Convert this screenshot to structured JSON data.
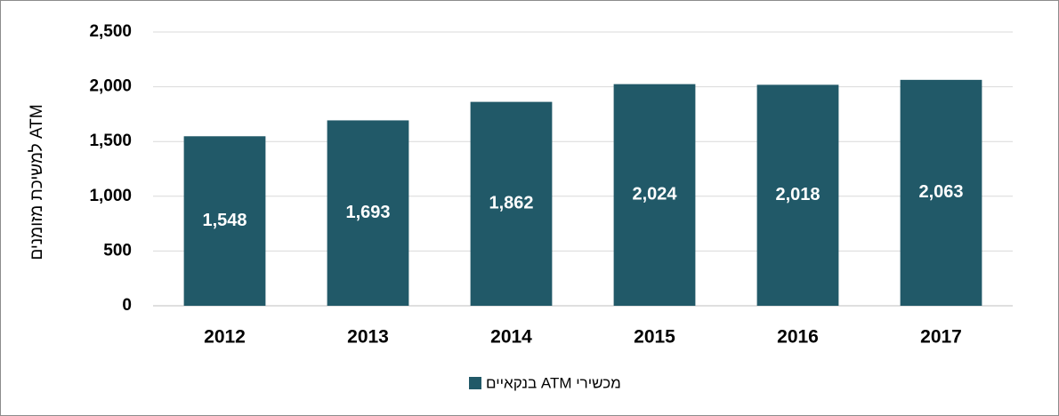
{
  "chart_data": {
    "type": "bar",
    "y_label": "ATM למשיכת מזומנים",
    "categories": [
      "2012",
      "2013",
      "2014",
      "2015",
      "2016",
      "2017"
    ],
    "series": [
      {
        "name": "מכשירי ATM בנקאיים",
        "color": "#215968",
        "values": [
          1548,
          1693,
          1862,
          2024,
          2018,
          2063
        ],
        "value_labels": [
          "1,548",
          "1,693",
          "1,862",
          "2,024",
          "2,018",
          "2,063"
        ]
      }
    ],
    "ylim": [
      0,
      2500
    ],
    "yticks": [
      0,
      500,
      {
        "value": 1000,
        "label": "1,000"
      },
      {
        "value": 1500,
        "label": "1,500"
      },
      {
        "value": 2000,
        "label": "2,000"
      },
      {
        "value": 2500,
        "label": "2,500"
      }
    ],
    "grid": true,
    "legend": "bottom"
  }
}
